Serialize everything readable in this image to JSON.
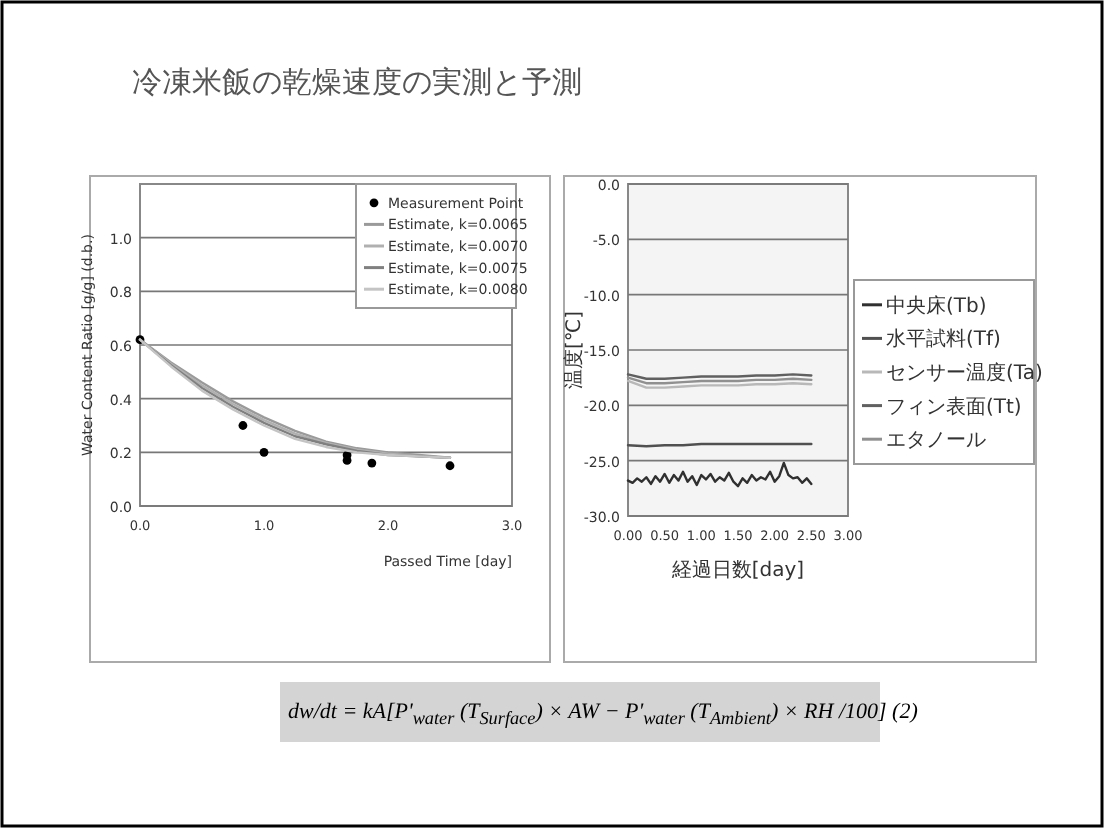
{
  "chart_data": [
    {
      "type": "scatter",
      "title": "冷凍米飯の乾燥速度の実測と予測",
      "xlabel": "Passed Time [day]",
      "ylabel": "Water Content Ratio [g/g] (d.b.)",
      "xlim": [
        0,
        3
      ],
      "ylim": [
        0,
        1.2
      ],
      "xticks": [
        {
          "value": 0,
          "label": "0.0"
        },
        {
          "value": 1,
          "label": "1.0"
        },
        {
          "value": 2,
          "label": "2.0"
        },
        {
          "value": 3,
          "label": "3.0"
        }
      ],
      "yticks": [
        {
          "value": 0,
          "label": "0.0"
        },
        {
          "value": 0.2,
          "label": "0.2"
        },
        {
          "value": 0.4,
          "label": "0.4"
        },
        {
          "value": 0.6,
          "label": "0.6"
        },
        {
          "value": 0.8,
          "label": "0.8"
        },
        {
          "value": 1.0,
          "label": "1.0"
        }
      ],
      "grid": "y",
      "legend": "top right",
      "annotations": [
        "dw/dt = kA[P'$_{water}$ (T$_{Surface}$) × AW − P'$_{water}$ (T$_{Ambient}$) × RH /100]    (2)"
      ],
      "series": [
        {
          "name": "Measurement Point",
          "type": "scatter",
          "color": "#000000",
          "x": [
            0,
            0.83,
            1.0,
            1.67,
            1.67,
            1.87,
            2.5
          ],
          "values": [
            0.62,
            0.3,
            0.2,
            0.19,
            0.17,
            0.16,
            0.15
          ]
        },
        {
          "name": "Estimate, k=0.0065",
          "type": "line",
          "color": "#9a9a9a",
          "x": [
            0,
            0.25,
            0.5,
            0.75,
            1.0,
            1.25,
            1.5,
            1.75,
            2.0,
            2.25,
            2.5
          ],
          "values": [
            0.62,
            0.535,
            0.46,
            0.39,
            0.33,
            0.28,
            0.24,
            0.215,
            0.2,
            0.19,
            0.18
          ]
        },
        {
          "name": "Estimate, k=0.0070",
          "type": "line",
          "color": "#b0b0b0",
          "x": [
            0,
            0.25,
            0.5,
            0.75,
            1.0,
            1.25,
            1.5,
            1.75,
            2.0,
            2.25,
            2.5
          ],
          "values": [
            0.62,
            0.53,
            0.45,
            0.38,
            0.32,
            0.27,
            0.235,
            0.21,
            0.195,
            0.185,
            0.18
          ]
        },
        {
          "name": "Estimate, k=0.0075",
          "type": "line",
          "color": "#808080",
          "x": [
            0,
            0.25,
            0.5,
            0.75,
            1.0,
            1.25,
            1.5,
            1.75,
            2.0,
            2.25,
            2.5
          ],
          "values": [
            0.62,
            0.525,
            0.44,
            0.37,
            0.31,
            0.26,
            0.23,
            0.205,
            0.19,
            0.185,
            0.18
          ]
        },
        {
          "name": "Estimate, k=0.0080",
          "type": "line",
          "color": "#c4c4c4",
          "x": [
            0,
            0.25,
            0.5,
            0.75,
            1.0,
            1.25,
            1.5,
            1.75,
            2.0,
            2.25,
            2.5
          ],
          "values": [
            0.62,
            0.52,
            0.43,
            0.36,
            0.3,
            0.25,
            0.22,
            0.2,
            0.19,
            0.185,
            0.18
          ]
        }
      ]
    },
    {
      "type": "line",
      "xlabel": "経過日数[day]",
      "ylabel": "温度[℃]",
      "xlim": [
        0,
        3
      ],
      "ylim": [
        -30,
        0
      ],
      "xticks": [
        {
          "value": 0,
          "label": "0.00"
        },
        {
          "value": 0.5,
          "label": "0.50"
        },
        {
          "value": 1,
          "label": "1.00"
        },
        {
          "value": 1.5,
          "label": "1.50"
        },
        {
          "value": 2,
          "label": "2.00"
        },
        {
          "value": 2.5,
          "label": "2.50"
        },
        {
          "value": 3,
          "label": "3.00"
        }
      ],
      "yticks": [
        {
          "value": 0,
          "label": "0.0"
        },
        {
          "value": -5,
          "label": "-5.0"
        },
        {
          "value": -10,
          "label": "-10.0"
        },
        {
          "value": -15,
          "label": "-15.0"
        },
        {
          "value": -20,
          "label": "-20.0"
        },
        {
          "value": -25,
          "label": "-25.0"
        },
        {
          "value": -30,
          "label": "-30.0"
        }
      ],
      "grid": "y",
      "legend": "right",
      "series": [
        {
          "name": "中央床(Tb)",
          "color": "#303030",
          "x": [
            0,
            0.0625,
            0.125,
            0.1875,
            0.25,
            0.3125,
            0.375,
            0.4375,
            0.5,
            0.5625,
            0.625,
            0.6875,
            0.75,
            0.8125,
            0.875,
            0.9375,
            1.0,
            1.0625,
            1.125,
            1.1875,
            1.25,
            1.3125,
            1.375,
            1.4375,
            1.5,
            1.5625,
            1.625,
            1.6875,
            1.75,
            1.8125,
            1.875,
            1.9375,
            2.0,
            2.0625,
            2.125,
            2.1875,
            2.25,
            2.3125,
            2.375,
            2.4375,
            2.5
          ],
          "values": [
            -26.8,
            -27.0,
            -26.6,
            -26.9,
            -26.5,
            -27.1,
            -26.4,
            -26.9,
            -26.2,
            -27.0,
            -26.3,
            -26.8,
            -26.0,
            -26.9,
            -26.4,
            -27.2,
            -26.3,
            -26.7,
            -26.2,
            -26.9,
            -26.5,
            -26.8,
            -26.1,
            -26.9,
            -27.3,
            -26.6,
            -27.0,
            -26.3,
            -26.8,
            -26.5,
            -26.7,
            -26.0,
            -26.9,
            -26.4,
            -25.2,
            -26.3,
            -26.6,
            -26.5,
            -27.0,
            -26.6,
            -27.1
          ]
        },
        {
          "name": "水平試料(Tf)",
          "color": "#505050",
          "x": [
            0,
            0.25,
            0.5,
            0.75,
            1.0,
            1.25,
            1.5,
            1.75,
            2.0,
            2.25,
            2.5
          ],
          "values": [
            -23.6,
            -23.7,
            -23.6,
            -23.6,
            -23.5,
            -23.5,
            -23.5,
            -23.5,
            -23.5,
            -23.5,
            -23.5
          ]
        },
        {
          "name": "センサー温度(Ta)",
          "color": "#b8b8b8",
          "x": [
            0,
            0.25,
            0.5,
            0.75,
            1.0,
            1.25,
            1.5,
            1.75,
            2.0,
            2.25,
            2.5
          ],
          "values": [
            -17.8,
            -18.4,
            -18.4,
            -18.3,
            -18.2,
            -18.2,
            -18.2,
            -18.1,
            -18.1,
            -18.0,
            -18.1
          ]
        },
        {
          "name": "フィン表面(Tt)",
          "color": "#606060",
          "x": [
            0,
            0.25,
            0.5,
            0.75,
            1.0,
            1.25,
            1.5,
            1.75,
            2.0,
            2.25,
            2.5
          ],
          "values": [
            -17.2,
            -17.6,
            -17.6,
            -17.5,
            -17.4,
            -17.4,
            -17.4,
            -17.3,
            -17.3,
            -17.2,
            -17.3
          ]
        },
        {
          "name": "エタノール",
          "color": "#909090",
          "x": [
            0,
            0.25,
            0.5,
            0.75,
            1.0,
            1.25,
            1.5,
            1.75,
            2.0,
            2.25,
            2.5
          ],
          "values": [
            -17.5,
            -18.0,
            -18.0,
            -17.9,
            -17.8,
            -17.8,
            -17.8,
            -17.7,
            -17.7,
            -17.6,
            -17.7
          ]
        }
      ]
    }
  ]
}
